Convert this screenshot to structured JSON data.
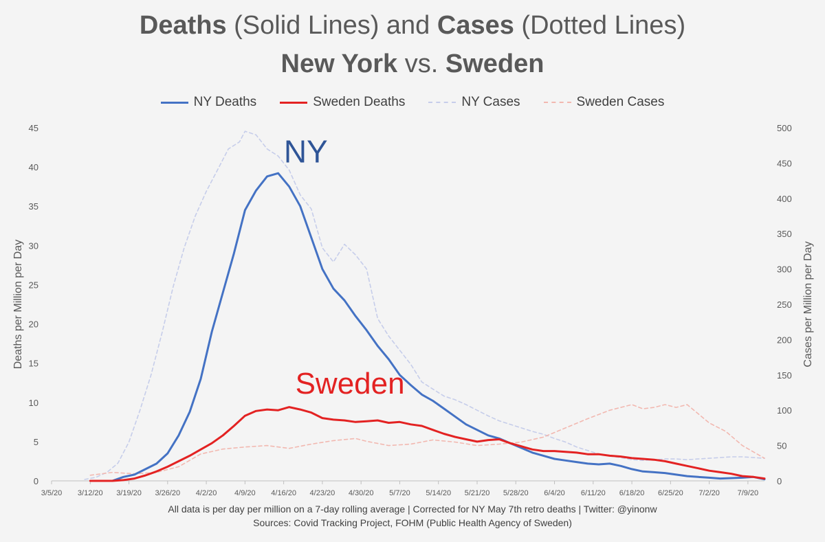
{
  "title": {
    "line1": [
      {
        "text": "Deaths",
        "bold": true
      },
      {
        "text": " (Solid Lines) and ",
        "bold": false
      },
      {
        "text": "Cases",
        "bold": true
      },
      {
        "text": " (Dotted Lines)",
        "bold": false
      }
    ],
    "line2": [
      {
        "text": "New York",
        "bold": true
      },
      {
        "text": "  vs. ",
        "bold": false
      },
      {
        "text": "Sweden",
        "bold": true
      }
    ]
  },
  "footer": {
    "line1": "All data is per day per million on a 7-day rolling average | Corrected for NY May 7th retro deaths | Twitter: @yinonw",
    "line2": "Sources: Covid Tracking Project, FOHM (Public Health Agency of Sweden)"
  },
  "chart_data": {
    "type": "line",
    "x_dates": [
      "3/5/20",
      "3/6/20",
      "3/7/20",
      "3/8/20",
      "3/9/20",
      "3/10/20",
      "3/11/20",
      "3/12/20",
      "3/13/20",
      "3/14/20",
      "3/15/20",
      "3/16/20",
      "3/17/20",
      "3/18/20",
      "3/19/20",
      "3/20/20",
      "3/21/20",
      "3/22/20",
      "3/23/20",
      "3/24/20",
      "3/25/20",
      "3/26/20",
      "3/27/20",
      "3/28/20",
      "3/29/20",
      "3/30/20",
      "3/31/20",
      "4/1/20",
      "4/2/20",
      "4/3/20",
      "4/4/20",
      "4/5/20",
      "4/6/20",
      "4/7/20",
      "4/8/20",
      "4/9/20",
      "4/10/20",
      "4/11/20",
      "4/12/20",
      "4/13/20",
      "4/14/20",
      "4/15/20",
      "4/16/20",
      "4/17/20",
      "4/18/20",
      "4/19/20",
      "4/20/20",
      "4/21/20",
      "4/22/20",
      "4/23/20",
      "4/24/20",
      "4/25/20",
      "4/26/20",
      "4/27/20",
      "4/28/20",
      "4/29/20",
      "4/30/20",
      "5/1/20",
      "5/2/20",
      "5/3/20",
      "5/4/20",
      "5/5/20",
      "5/6/20",
      "5/7/20",
      "5/8/20",
      "5/9/20",
      "5/10/20",
      "5/11/20",
      "5/12/20",
      "5/13/20",
      "5/14/20",
      "5/15/20",
      "5/16/20",
      "5/17/20",
      "5/18/20",
      "5/19/20",
      "5/20/20",
      "5/21/20",
      "5/22/20",
      "5/23/20",
      "5/24/20",
      "5/25/20",
      "5/26/20",
      "5/27/20",
      "5/28/20",
      "5/29/20",
      "5/30/20",
      "5/31/20",
      "6/1/20",
      "6/2/20",
      "6/3/20",
      "6/4/20",
      "6/5/20",
      "6/6/20",
      "6/7/20",
      "6/8/20",
      "6/9/20",
      "6/10/20",
      "6/11/20",
      "6/12/20",
      "6/13/20",
      "6/14/20",
      "6/15/20",
      "6/16/20",
      "6/17/20",
      "6/18/20",
      "6/19/20",
      "6/20/20",
      "6/21/20",
      "6/22/20",
      "6/23/20",
      "6/24/20",
      "6/25/20",
      "6/26/20",
      "6/27/20",
      "6/28/20",
      "6/29/20",
      "6/30/20",
      "7/1/20",
      "7/2/20",
      "7/3/20",
      "7/4/20",
      "7/5/20",
      "7/6/20",
      "7/7/20",
      "7/8/20",
      "7/9/20",
      "7/10/20",
      "7/11/20",
      "7/12/20"
    ],
    "x_tick_labels": [
      "3/5/20",
      "3/12/20",
      "3/19/20",
      "3/26/20",
      "4/2/20",
      "4/9/20",
      "4/16/20",
      "4/23/20",
      "4/30/20",
      "5/7/20",
      "5/14/20",
      "5/21/20",
      "5/28/20",
      "6/4/20",
      "6/11/20",
      "6/18/20",
      "6/25/20",
      "7/2/20",
      "7/9/20"
    ],
    "y_left": {
      "label": "Deaths per Million per Day",
      "range": [
        0,
        45
      ],
      "ticks": [
        0,
        5,
        10,
        15,
        20,
        25,
        30,
        35,
        40,
        45
      ]
    },
    "y_right": {
      "label": "Cases per Million per Day",
      "range": [
        0,
        500
      ],
      "ticks": [
        0,
        50,
        100,
        150,
        200,
        250,
        300,
        350,
        400,
        450,
        500
      ]
    },
    "grid": false,
    "legend_position": "top-center",
    "series": [
      {
        "name": "NY Deaths",
        "axis": "left",
        "color": "#4472c4",
        "style": "solid",
        "points": [
          [
            "3/16/20",
            0
          ],
          [
            "3/18/20",
            0.5
          ],
          [
            "3/20/20",
            0.8
          ],
          [
            "3/22/20",
            1.5
          ],
          [
            "3/24/20",
            2.2
          ],
          [
            "3/26/20",
            3.5
          ],
          [
            "3/28/20",
            5.8
          ],
          [
            "3/30/20",
            8.8
          ],
          [
            "4/1/20",
            13
          ],
          [
            "4/3/20",
            19
          ],
          [
            "4/5/20",
            24
          ],
          [
            "4/7/20",
            29
          ],
          [
            "4/9/20",
            34.5
          ],
          [
            "4/11/20",
            37
          ],
          [
            "4/13/20",
            38.8
          ],
          [
            "4/15/20",
            39.2
          ],
          [
            "4/17/20",
            37.5
          ],
          [
            "4/19/20",
            35
          ],
          [
            "4/21/20",
            31
          ],
          [
            "4/23/20",
            27
          ],
          [
            "4/25/20",
            24.5
          ],
          [
            "4/27/20",
            23
          ],
          [
            "4/29/20",
            21
          ],
          [
            "5/1/20",
            19.2
          ],
          [
            "5/3/20",
            17.2
          ],
          [
            "5/5/20",
            15.5
          ],
          [
            "5/7/20",
            13.5
          ],
          [
            "5/9/20",
            12.2
          ],
          [
            "5/11/20",
            11
          ],
          [
            "5/13/20",
            10.2
          ],
          [
            "5/15/20",
            9.2
          ],
          [
            "5/17/20",
            8.2
          ],
          [
            "5/19/20",
            7.2
          ],
          [
            "5/21/20",
            6.5
          ],
          [
            "5/23/20",
            5.8
          ],
          [
            "5/25/20",
            5.4
          ],
          [
            "5/27/20",
            4.8
          ],
          [
            "5/29/20",
            4.2
          ],
          [
            "5/31/20",
            3.6
          ],
          [
            "6/2/20",
            3.2
          ],
          [
            "6/4/20",
            2.8
          ],
          [
            "6/6/20",
            2.6
          ],
          [
            "6/8/20",
            2.4
          ],
          [
            "6/10/20",
            2.2
          ],
          [
            "6/12/20",
            2.1
          ],
          [
            "6/14/20",
            2.2
          ],
          [
            "6/16/20",
            1.9
          ],
          [
            "6/18/20",
            1.5
          ],
          [
            "6/20/20",
            1.2
          ],
          [
            "6/22/20",
            1.1
          ],
          [
            "6/24/20",
            1.0
          ],
          [
            "6/26/20",
            0.8
          ],
          [
            "6/28/20",
            0.6
          ],
          [
            "6/30/20",
            0.5
          ],
          [
            "7/2/20",
            0.4
          ],
          [
            "7/4/20",
            0.3
          ],
          [
            "7/6/20",
            0.35
          ],
          [
            "7/8/20",
            0.4
          ],
          [
            "7/10/20",
            0.5
          ],
          [
            "7/12/20",
            0.2
          ]
        ]
      },
      {
        "name": "Sweden Deaths",
        "axis": "left",
        "color": "#e32222",
        "style": "solid",
        "points": [
          [
            "3/12/20",
            0
          ],
          [
            "3/16/20",
            0
          ],
          [
            "3/18/20",
            0.1
          ],
          [
            "3/20/20",
            0.3
          ],
          [
            "3/22/20",
            0.7
          ],
          [
            "3/24/20",
            1.2
          ],
          [
            "3/26/20",
            1.8
          ],
          [
            "3/28/20",
            2.5
          ],
          [
            "3/30/20",
            3.2
          ],
          [
            "4/1/20",
            4
          ],
          [
            "4/3/20",
            4.8
          ],
          [
            "4/5/20",
            5.8
          ],
          [
            "4/7/20",
            7
          ],
          [
            "4/9/20",
            8.3
          ],
          [
            "4/11/20",
            8.9
          ],
          [
            "4/13/20",
            9.1
          ],
          [
            "4/15/20",
            9.0
          ],
          [
            "4/17/20",
            9.4
          ],
          [
            "4/19/20",
            9.1
          ],
          [
            "4/21/20",
            8.7
          ],
          [
            "4/23/20",
            8.0
          ],
          [
            "4/25/20",
            7.8
          ],
          [
            "4/27/20",
            7.7
          ],
          [
            "4/29/20",
            7.5
          ],
          [
            "5/1/20",
            7.6
          ],
          [
            "5/3/20",
            7.7
          ],
          [
            "5/5/20",
            7.4
          ],
          [
            "5/7/20",
            7.5
          ],
          [
            "5/9/20",
            7.2
          ],
          [
            "5/11/20",
            7.0
          ],
          [
            "5/13/20",
            6.5
          ],
          [
            "5/15/20",
            6.0
          ],
          [
            "5/17/20",
            5.6
          ],
          [
            "5/19/20",
            5.3
          ],
          [
            "5/21/20",
            5.0
          ],
          [
            "5/23/20",
            5.2
          ],
          [
            "5/25/20",
            5.3
          ],
          [
            "5/27/20",
            4.8
          ],
          [
            "5/29/20",
            4.4
          ],
          [
            "5/31/20",
            4.0
          ],
          [
            "6/2/20",
            3.8
          ],
          [
            "6/4/20",
            3.8
          ],
          [
            "6/6/20",
            3.7
          ],
          [
            "6/8/20",
            3.6
          ],
          [
            "6/10/20",
            3.4
          ],
          [
            "6/12/20",
            3.4
          ],
          [
            "6/14/20",
            3.2
          ],
          [
            "6/16/20",
            3.1
          ],
          [
            "6/18/20",
            2.9
          ],
          [
            "6/20/20",
            2.8
          ],
          [
            "6/22/20",
            2.7
          ],
          [
            "6/24/20",
            2.5
          ],
          [
            "6/26/20",
            2.2
          ],
          [
            "6/28/20",
            1.9
          ],
          [
            "6/30/20",
            1.6
          ],
          [
            "7/2/20",
            1.3
          ],
          [
            "7/4/20",
            1.1
          ],
          [
            "7/6/20",
            0.9
          ],
          [
            "7/8/20",
            0.6
          ],
          [
            "7/10/20",
            0.5
          ],
          [
            "7/12/20",
            0.3
          ]
        ]
      },
      {
        "name": "NY Cases",
        "axis": "right",
        "color": "#c6cdea",
        "style": "dashed",
        "points": [
          [
            "3/11/20",
            2
          ],
          [
            "3/13/20",
            5
          ],
          [
            "3/15/20",
            12
          ],
          [
            "3/17/20",
            25
          ],
          [
            "3/19/20",
            55
          ],
          [
            "3/21/20",
            100
          ],
          [
            "3/23/20",
            150
          ],
          [
            "3/25/20",
            210
          ],
          [
            "3/27/20",
            275
          ],
          [
            "3/29/20",
            330
          ],
          [
            "3/31/20",
            375
          ],
          [
            "4/2/20",
            410
          ],
          [
            "4/4/20",
            440
          ],
          [
            "4/6/20",
            470
          ],
          [
            "4/8/20",
            480
          ],
          [
            "4/9/20",
            495
          ],
          [
            "4/11/20",
            490
          ],
          [
            "4/13/20",
            470
          ],
          [
            "4/15/20",
            460
          ],
          [
            "4/17/20",
            440
          ],
          [
            "4/19/20",
            405
          ],
          [
            "4/21/20",
            385
          ],
          [
            "4/23/20",
            330
          ],
          [
            "4/25/20",
            310
          ],
          [
            "4/27/20",
            335
          ],
          [
            "4/29/20",
            320
          ],
          [
            "5/1/20",
            300
          ],
          [
            "5/3/20",
            230
          ],
          [
            "5/5/20",
            205
          ],
          [
            "5/7/20",
            185
          ],
          [
            "5/9/20",
            165
          ],
          [
            "5/11/20",
            140
          ],
          [
            "5/13/20",
            130
          ],
          [
            "5/15/20",
            120
          ],
          [
            "5/17/20",
            115
          ],
          [
            "5/19/20",
            108
          ],
          [
            "5/21/20",
            100
          ],
          [
            "5/23/20",
            92
          ],
          [
            "5/25/20",
            85
          ],
          [
            "5/27/20",
            80
          ],
          [
            "5/29/20",
            75
          ],
          [
            "5/31/20",
            70
          ],
          [
            "6/2/20",
            66
          ],
          [
            "6/4/20",
            60
          ],
          [
            "6/6/20",
            55
          ],
          [
            "6/8/20",
            48
          ],
          [
            "6/10/20",
            43
          ],
          [
            "6/12/20",
            38
          ],
          [
            "6/14/20",
            35
          ],
          [
            "6/16/20",
            33
          ],
          [
            "6/18/20",
            30
          ],
          [
            "6/20/20",
            29
          ],
          [
            "6/22/20",
            30
          ],
          [
            "6/24/20",
            31
          ],
          [
            "6/26/20",
            31
          ],
          [
            "6/28/20",
            30
          ],
          [
            "6/30/20",
            31
          ],
          [
            "7/2/20",
            32
          ],
          [
            "7/4/20",
            33
          ],
          [
            "7/6/20",
            34
          ],
          [
            "7/8/20",
            34
          ],
          [
            "7/10/20",
            33
          ],
          [
            "7/12/20",
            32
          ]
        ]
      },
      {
        "name": "Sweden Cases",
        "axis": "right",
        "color": "#f2b8b0",
        "style": "dashed",
        "points": [
          [
            "3/12/20",
            8
          ],
          [
            "3/16/20",
            12
          ],
          [
            "3/20/20",
            10
          ],
          [
            "3/24/20",
            12
          ],
          [
            "3/28/20",
            20
          ],
          [
            "4/1/20",
            38
          ],
          [
            "4/5/20",
            45
          ],
          [
            "4/9/20",
            48
          ],
          [
            "4/13/20",
            50
          ],
          [
            "4/17/20",
            46
          ],
          [
            "4/21/20",
            52
          ],
          [
            "4/25/20",
            57
          ],
          [
            "4/29/20",
            60
          ],
          [
            "5/1/20",
            56
          ],
          [
            "5/5/20",
            50
          ],
          [
            "5/9/20",
            52
          ],
          [
            "5/13/20",
            58
          ],
          [
            "5/17/20",
            55
          ],
          [
            "5/21/20",
            50
          ],
          [
            "5/25/20",
            52
          ],
          [
            "5/29/20",
            55
          ],
          [
            "6/2/20",
            62
          ],
          [
            "6/6/20",
            75
          ],
          [
            "6/10/20",
            88
          ],
          [
            "6/14/20",
            100
          ],
          [
            "6/18/20",
            108
          ],
          [
            "6/20/20",
            102
          ],
          [
            "6/22/20",
            104
          ],
          [
            "6/24/20",
            108
          ],
          [
            "6/26/20",
            104
          ],
          [
            "6/28/20",
            108
          ],
          [
            "6/30/20",
            95
          ],
          [
            "7/2/20",
            82
          ],
          [
            "7/5/20",
            70
          ],
          [
            "7/8/20",
            50
          ],
          [
            "7/12/20",
            32
          ]
        ]
      }
    ],
    "annotations": [
      {
        "text": "NY",
        "color": "#2f5597",
        "near": "4/20/20",
        "axis": "left",
        "y": 42
      },
      {
        "text": "Sweden",
        "color": "#e32222",
        "near": "4/28/20",
        "axis": "left",
        "y": 12.5
      }
    ]
  }
}
